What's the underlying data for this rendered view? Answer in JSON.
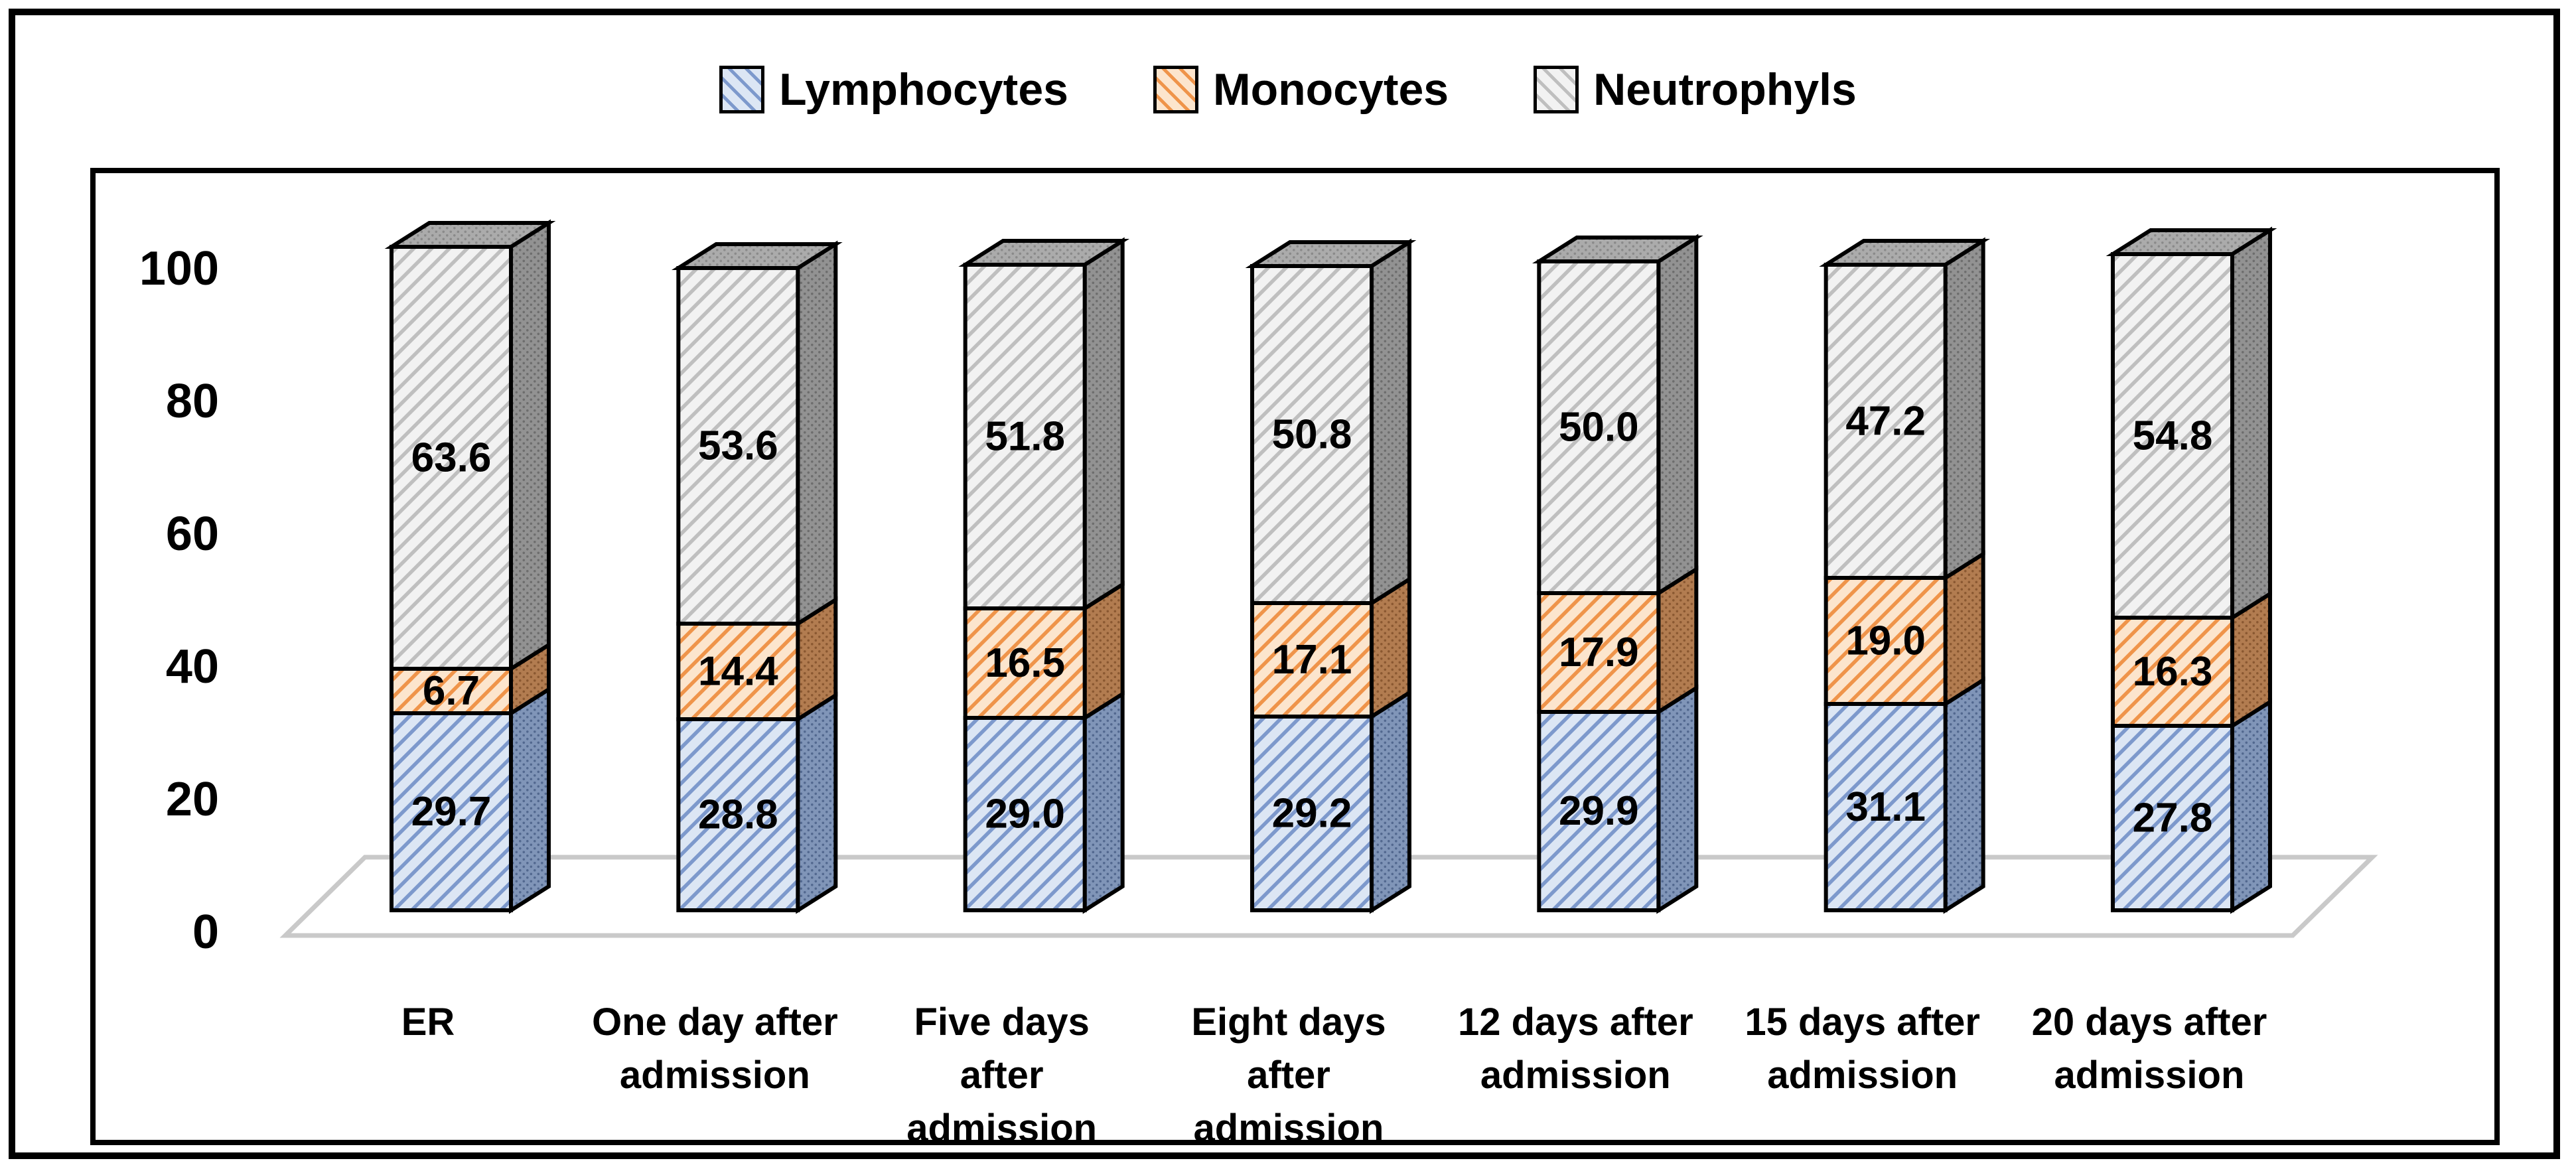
{
  "legend": {
    "items": [
      {
        "key": "lymphocytes",
        "label": "Lymphocytes"
      },
      {
        "key": "monocytes",
        "label": "Monocytes"
      },
      {
        "key": "neutrophyls",
        "label": "Neutrophyls"
      }
    ],
    "position": "top"
  },
  "chart_data": {
    "type": "bar",
    "subtype": "stacked-3d",
    "title": "",
    "xlabel": "",
    "ylabel": "",
    "categories": [
      "ER",
      "One day after admission",
      "Five days after admission",
      "Eight days after admission",
      "12 days after admission",
      "15 days after admission",
      "20 days after admission"
    ],
    "category_label_lines": [
      [
        "ER"
      ],
      [
        "One day after",
        "admission"
      ],
      [
        "Five days",
        "after",
        "admission"
      ],
      [
        "Eight days",
        "after",
        "admission"
      ],
      [
        "12 days after",
        "admission"
      ],
      [
        "15 days after",
        "admission"
      ],
      [
        "20 days after",
        "admission"
      ]
    ],
    "series": [
      {
        "name": "Lymphocytes",
        "values": [
          29.7,
          28.8,
          29.0,
          29.2,
          29.9,
          31.1,
          27.8
        ]
      },
      {
        "name": "Monocytes",
        "values": [
          6.7,
          14.4,
          16.5,
          17.1,
          17.9,
          19.0,
          16.3
        ]
      },
      {
        "name": "Neutrophyls",
        "values": [
          63.6,
          53.6,
          51.8,
          50.8,
          50.0,
          47.2,
          54.8
        ]
      }
    ],
    "value_label_decimals": 1,
    "ylim": [
      0,
      100
    ],
    "y_ticks": [
      0,
      20,
      40,
      60,
      80,
      100
    ],
    "grid": "off",
    "legend_position": "top"
  },
  "colors": {
    "series": [
      {
        "front_bg": "#dce6f4",
        "front_line": "#7d99cc",
        "side_bg": "#8095b8",
        "side_dot": "#52688f"
      },
      {
        "front_bg": "#fce5cd",
        "front_line": "#ef944a",
        "side_bg": "#b27c50",
        "side_dot": "#8a5831"
      },
      {
        "front_bg": "#f2f2f2",
        "front_line": "#bfbfbf",
        "side_bg": "#929292",
        "side_dot": "#6d6d6d"
      }
    ],
    "top_bg": "#ababab",
    "top_dot": "#8a8a8a",
    "floor_line": "#c9c9c9",
    "edge": "#000000",
    "text": "#000000",
    "background": "#ffffff"
  }
}
